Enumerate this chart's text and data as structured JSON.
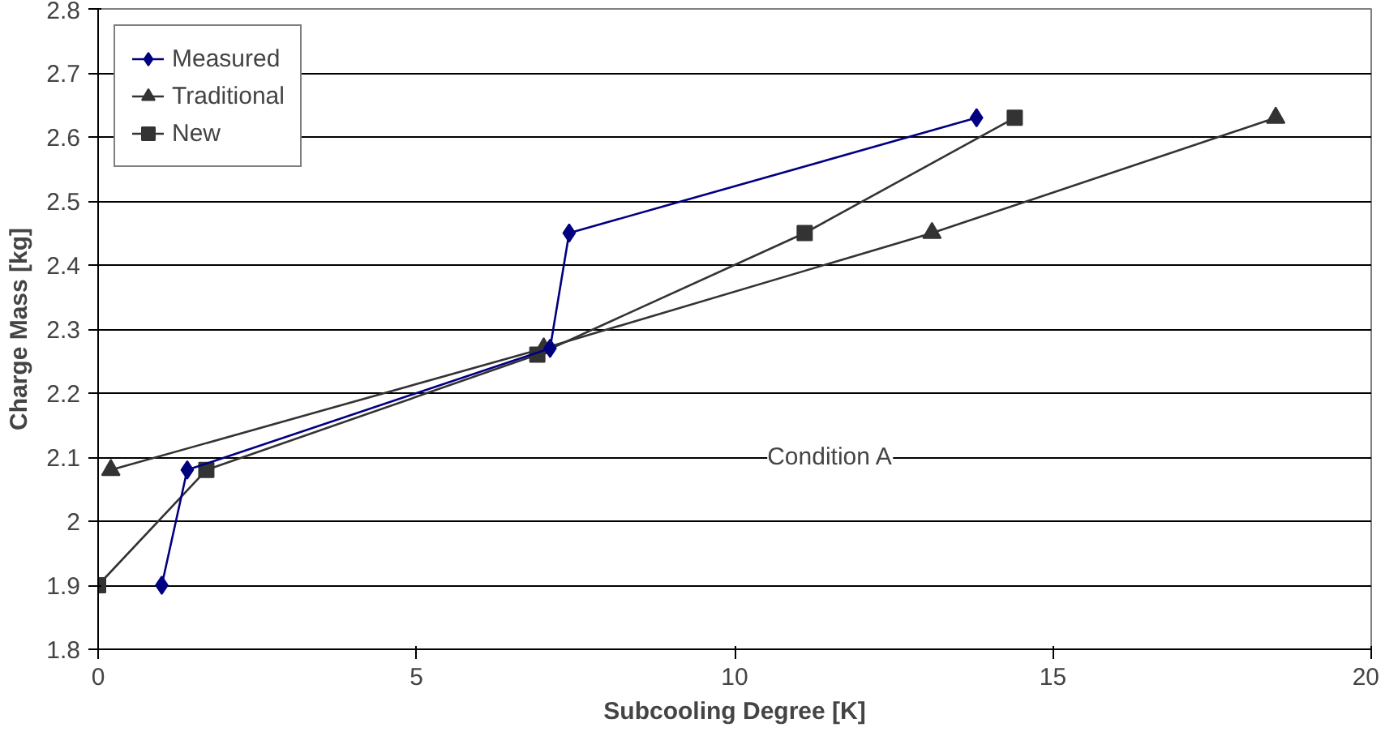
{
  "chart_data": {
    "type": "line",
    "xlabel": "Subcooling Degree [K]",
    "ylabel": "Charge Mass [kg]",
    "xlim": [
      0,
      20
    ],
    "xticks": [
      0,
      5,
      10,
      15,
      20
    ],
    "ylim": [
      1.8,
      2.8
    ],
    "yticks": [
      1.8,
      1.9,
      2,
      2.1,
      2.2,
      2.3,
      2.4,
      2.5,
      2.6,
      2.7,
      2.8
    ],
    "grid": "y",
    "legend": "top left",
    "series": [
      {
        "name": "Measured",
        "color": "#000080",
        "marker": "diamond",
        "x": [
          1.0,
          1.4,
          7.1,
          7.4,
          13.8
        ],
        "values": [
          1.9,
          2.08,
          2.27,
          2.45,
          2.63
        ]
      },
      {
        "name": "Traditional",
        "color": "#333333",
        "marker": "triangle",
        "x": [
          0.2,
          7.0,
          13.1,
          18.5
        ],
        "values": [
          2.08,
          2.27,
          2.45,
          2.63
        ]
      },
      {
        "name": "New",
        "color": "#333333",
        "marker": "square",
        "x": [
          0,
          1.7,
          6.9,
          11.1,
          14.4
        ],
        "values": [
          1.9,
          2.08,
          2.26,
          2.45,
          2.63
        ]
      }
    ],
    "annotations": [
      "Condition A"
    ]
  }
}
